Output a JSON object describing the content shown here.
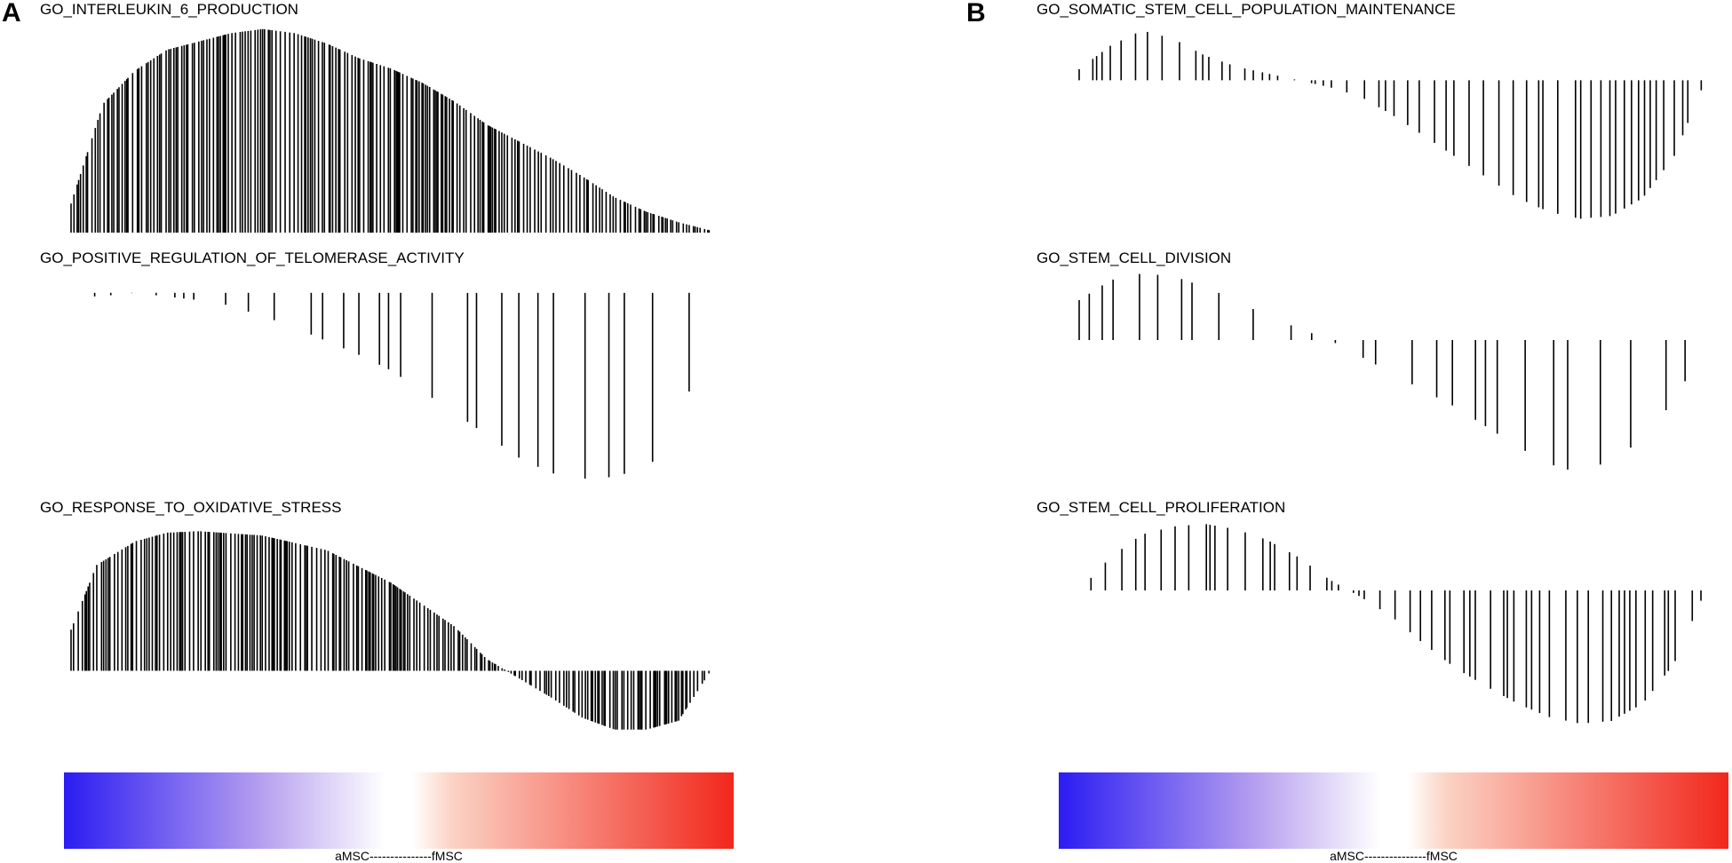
{
  "panels": [
    {
      "letter": "A"
    },
    {
      "letter": "B"
    }
  ],
  "chart_data": [
    {
      "type": "line",
      "panel": "A",
      "title": "GO_INTERLEUKIN_6_PRODUCTION",
      "description": "Running enrichment score drawn as vertical hit bars from the baseline",
      "ylim": [
        0,
        1
      ],
      "series": [
        {
          "kind": "positive_then_decay",
          "x": [
            0.0,
            0.05,
            0.1,
            0.15,
            0.2,
            0.25,
            0.3,
            0.35,
            0.4,
            0.45,
            0.5,
            0.55,
            0.6,
            0.65,
            0.7,
            0.75,
            0.8,
            0.85,
            0.9,
            0.95,
            0.975,
            1.0
          ],
          "y": [
            0.14,
            0.62,
            0.78,
            0.88,
            0.92,
            0.96,
            0.98,
            0.96,
            0.91,
            0.84,
            0.79,
            0.72,
            0.63,
            0.52,
            0.44,
            0.36,
            0.27,
            0.17,
            0.1,
            0.05,
            0.03,
            0.01
          ]
        }
      ]
    },
    {
      "type": "line",
      "panel": "A",
      "title": "GO_POSITIVE_REGULATION_OF_TELOMERASE_ACTIVITY",
      "ylim": [
        -1,
        0.1
      ],
      "series": [
        {
          "x": [
            0.0,
            0.04,
            0.1,
            0.23,
            0.3,
            0.35,
            0.4,
            0.45,
            0.5,
            0.6,
            0.7,
            0.75,
            0.8,
            0.85,
            0.9,
            0.95,
            1.0
          ],
          "y": [
            0.0,
            -0.02,
            0.0,
            -0.05,
            -0.12,
            -0.18,
            -0.25,
            -0.32,
            -0.4,
            -0.62,
            -0.85,
            -0.93,
            -0.96,
            -0.95,
            -0.9,
            -0.75,
            -0.02
          ]
        }
      ]
    },
    {
      "type": "line",
      "panel": "A",
      "title": "GO_RESPONSE_TO_OXIDATIVE_STRESS",
      "ylim": [
        -0.45,
        1
      ],
      "series": [
        {
          "x": [
            0.0,
            0.04,
            0.1,
            0.15,
            0.2,
            0.3,
            0.4,
            0.5,
            0.6,
            0.65,
            0.7,
            0.75,
            0.8,
            0.85,
            0.9,
            0.95,
            1.0
          ],
          "y": [
            0.28,
            0.72,
            0.88,
            0.94,
            0.95,
            0.92,
            0.82,
            0.6,
            0.3,
            0.08,
            -0.05,
            -0.18,
            -0.32,
            -0.4,
            -0.4,
            -0.34,
            0.0
          ]
        }
      ]
    },
    {
      "type": "line",
      "panel": "B",
      "title": "GO_SOMATIC_STEM_CELL_POPULATION_MAINTENANCE",
      "ylim": [
        -1.1,
        0.4
      ],
      "series": [
        {
          "x": [
            0.0,
            0.05,
            0.1,
            0.15,
            0.2,
            0.25,
            0.3,
            0.35,
            0.4,
            0.45,
            0.5,
            0.55,
            0.6,
            0.65,
            0.7,
            0.75,
            0.8,
            0.85,
            0.9,
            0.95,
            1.0
          ],
          "y": [
            0.08,
            0.25,
            0.36,
            0.3,
            0.18,
            0.1,
            0.05,
            0.0,
            -0.05,
            -0.12,
            -0.25,
            -0.4,
            -0.55,
            -0.7,
            -0.85,
            -0.95,
            -1.0,
            -0.98,
            -0.85,
            -0.55,
            0.0
          ]
        }
      ]
    },
    {
      "type": "line",
      "panel": "B",
      "title": "GO_STEM_CELL_DIVISION",
      "ylim": [
        -1.1,
        0.5
      ],
      "series": [
        {
          "x": [
            0.0,
            0.05,
            0.1,
            0.15,
            0.2,
            0.25,
            0.3,
            0.4,
            0.5,
            0.55,
            0.6,
            0.65,
            0.7,
            0.75,
            0.8,
            0.85,
            0.9,
            0.95,
            1.0
          ],
          "y": [
            0.3,
            0.45,
            0.5,
            0.48,
            0.4,
            0.3,
            0.18,
            0.0,
            -0.25,
            -0.38,
            -0.5,
            -0.65,
            -0.8,
            -0.93,
            -1.0,
            -0.9,
            -0.75,
            -0.45,
            -0.05
          ]
        }
      ]
    },
    {
      "type": "line",
      "panel": "B",
      "title": "GO_STEM_CELL_PROLIFERATION",
      "ylim": [
        -1.1,
        0.5
      ],
      "series": [
        {
          "x": [
            0.0,
            0.05,
            0.1,
            0.15,
            0.2,
            0.25,
            0.3,
            0.35,
            0.4,
            0.45,
            0.5,
            0.55,
            0.6,
            0.65,
            0.7,
            0.75,
            0.8,
            0.85,
            0.9,
            0.95,
            1.0
          ],
          "y": [
            0.0,
            0.25,
            0.42,
            0.48,
            0.5,
            0.46,
            0.38,
            0.25,
            0.08,
            -0.05,
            -0.2,
            -0.4,
            -0.58,
            -0.72,
            -0.85,
            -0.95,
            -1.0,
            -0.98,
            -0.85,
            -0.55,
            0.0
          ]
        }
      ]
    }
  ],
  "colorbar": {
    "label": "aMSC---------------fMSC",
    "left_color": "#2b1cf2",
    "mid_color": "#ffffff",
    "right_color": "#f2271c"
  }
}
